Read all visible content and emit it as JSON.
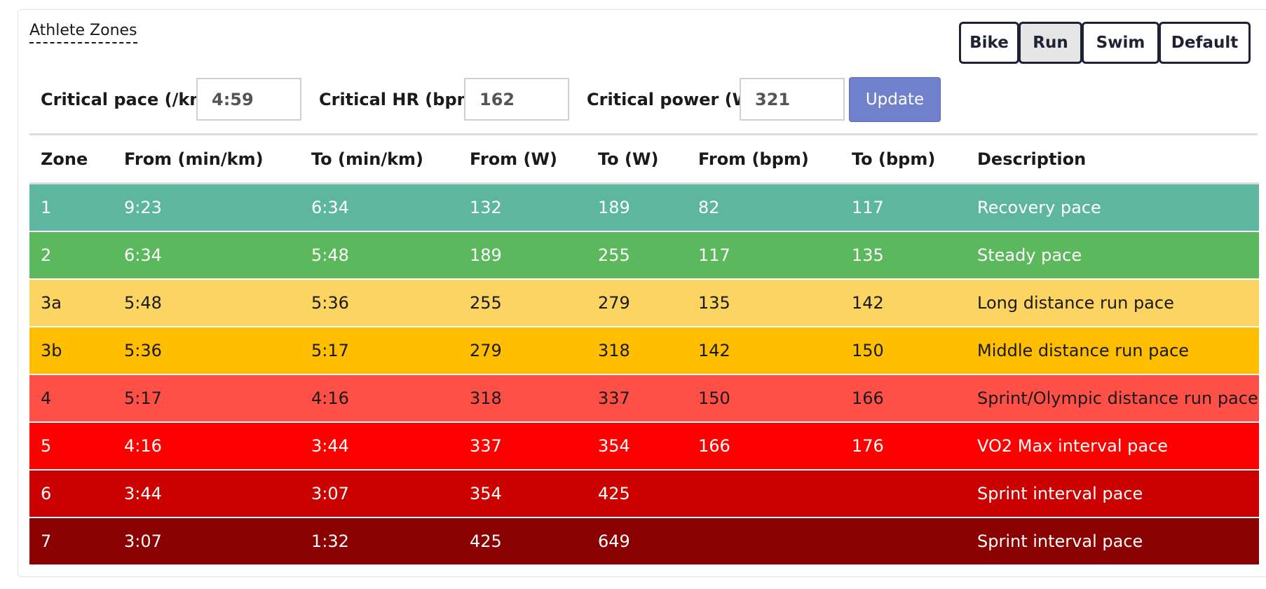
{
  "title": "Athlete Zones",
  "sport_buttons": [
    {
      "label": "Bike",
      "active": false
    },
    {
      "label": "Run",
      "active": true
    },
    {
      "label": "Swim",
      "active": false
    },
    {
      "label": "Default",
      "active": false
    }
  ],
  "controls": {
    "pace_label": "Critical pace (/km)",
    "pace_value": "4:59",
    "hr_label": "Critical HR (bpm)",
    "hr_value": "162",
    "power_label": "Critical power (W)",
    "power_value": "321",
    "update_label": "Update"
  },
  "table": {
    "headers": [
      "Zone",
      "From (min/km)",
      "To (min/km)",
      "From (W)",
      "To (W)",
      "From (bpm)",
      "To (bpm)",
      "Description"
    ],
    "rows": [
      {
        "cells": [
          "1",
          "9:23",
          "6:34",
          "132",
          "189",
          "82",
          "117",
          "Recovery pace"
        ],
        "bg": "#5db6a0",
        "fg": "#ffffff"
      },
      {
        "cells": [
          "2",
          "6:34",
          "5:48",
          "189",
          "255",
          "117",
          "135",
          "Steady pace"
        ],
        "bg": "#5cb85c",
        "fg": "#ffffff"
      },
      {
        "cells": [
          "3a",
          "5:48",
          "5:36",
          "255",
          "279",
          "135",
          "142",
          "Long distance run pace"
        ],
        "bg": "#fcd462",
        "fg": "#1a1a1a"
      },
      {
        "cells": [
          "3b",
          "5:36",
          "5:17",
          "279",
          "318",
          "142",
          "150",
          "Middle distance run pace"
        ],
        "bg": "#ffbe00",
        "fg": "#1a1a1a"
      },
      {
        "cells": [
          "4",
          "5:17",
          "4:16",
          "318",
          "337",
          "150",
          "166",
          "Sprint/Olympic distance run pace"
        ],
        "bg": "#ff5048",
        "fg": "#1a1a1a"
      },
      {
        "cells": [
          "5",
          "4:16",
          "3:44",
          "337",
          "354",
          "166",
          "176",
          "VO2 Max interval pace"
        ],
        "bg": "#ff0000",
        "fg": "#ffffff"
      },
      {
        "cells": [
          "6",
          "3:44",
          "3:07",
          "354",
          "425",
          "",
          "",
          "Sprint interval pace"
        ],
        "bg": "#cb0000",
        "fg": "#ffffff"
      },
      {
        "cells": [
          "7",
          "3:07",
          "1:32",
          "425",
          "649",
          "",
          "",
          "Sprint interval pace"
        ],
        "bg": "#8b0000",
        "fg": "#ffffff"
      }
    ]
  }
}
